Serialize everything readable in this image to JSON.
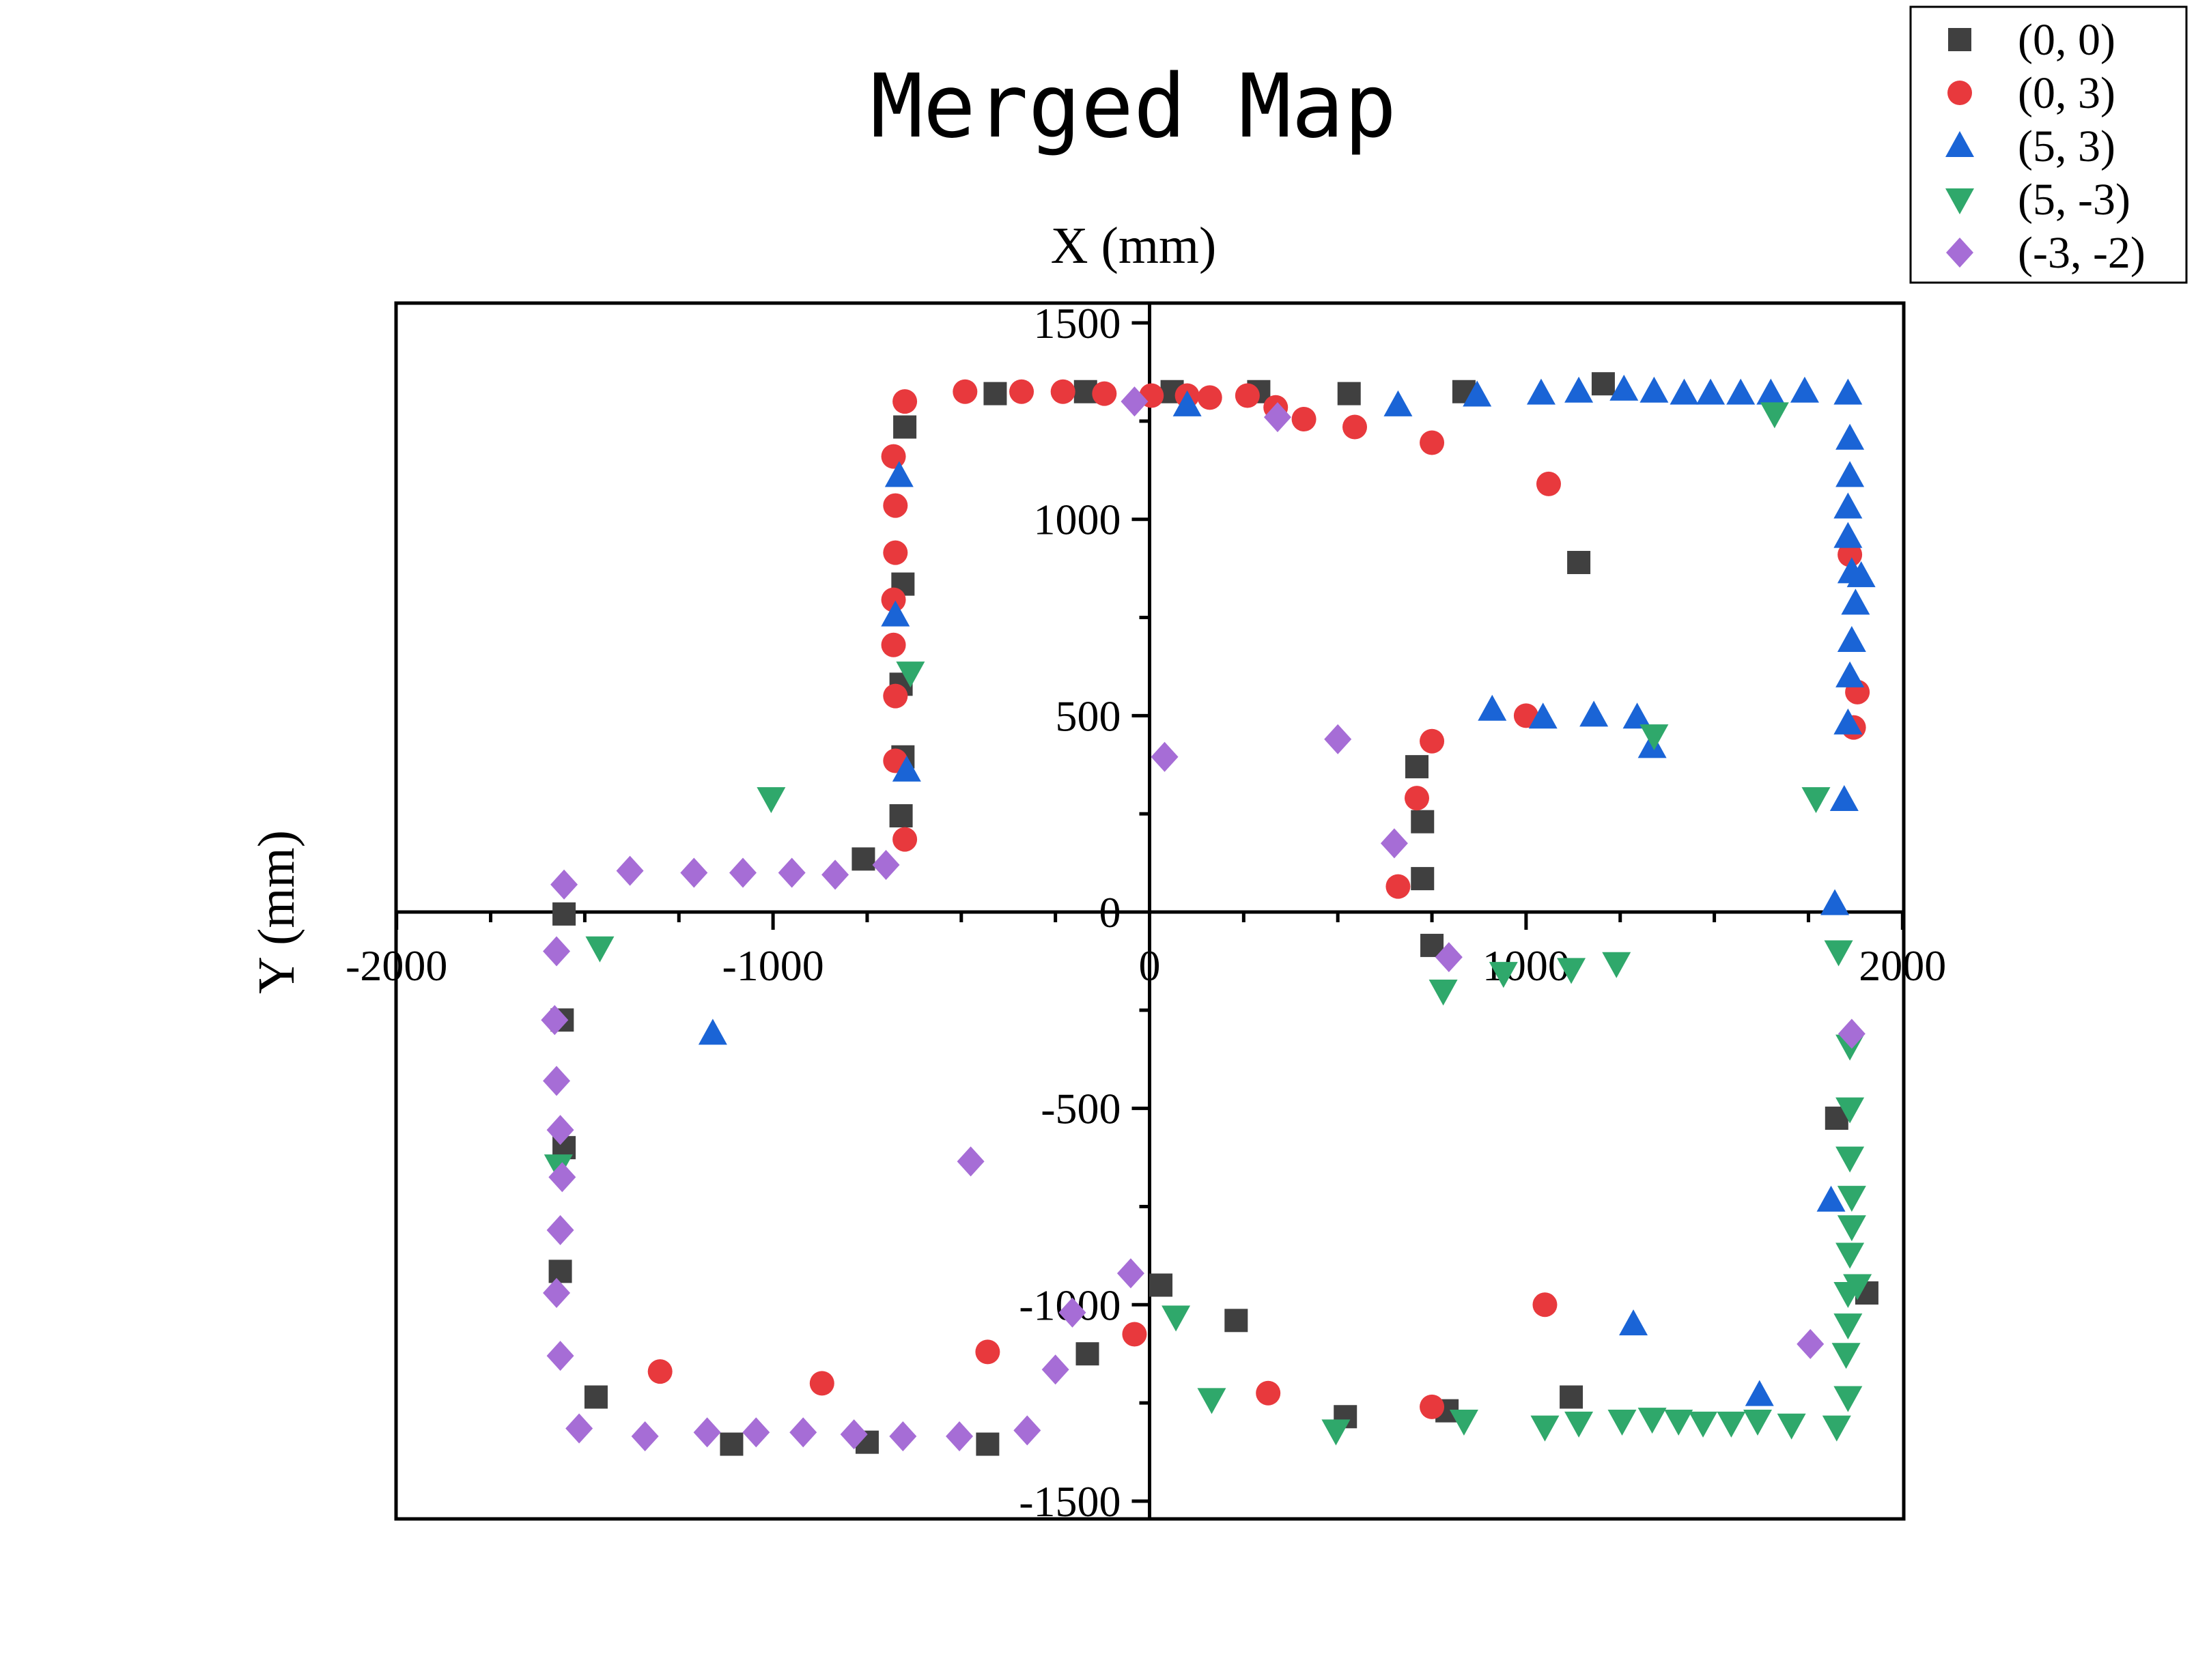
{
  "chart_data": {
    "type": "scatter",
    "title": "Merged Map",
    "xlabel": "X (mm)",
    "ylabel": "Y (mm)",
    "xlim": [
      -2000,
      2000
    ],
    "ylim": [
      -1550,
      1550
    ],
    "xticks": [
      -2000,
      -1000,
      0,
      1000,
      2000
    ],
    "yticks": [
      1500,
      1000,
      500,
      0,
      -500,
      -1000,
      -1500
    ],
    "x_tick_labels": [
      "-2000",
      "-1000",
      "0",
      "1000",
      "2000"
    ],
    "y_tick_labels": [
      "1500",
      "1000",
      "500",
      "0",
      "-500",
      "-1000",
      "-1500"
    ],
    "grid": false,
    "legend_position": "top-right",
    "series": [
      {
        "name": "(0, 0)",
        "marker": "square",
        "color": "#404040",
        "points": [
          [
            -1555,
            -5
          ],
          [
            -1560,
            -275
          ],
          [
            -1555,
            -600
          ],
          [
            -1565,
            -915
          ],
          [
            -1470,
            -1235
          ],
          [
            -1110,
            -1355
          ],
          [
            -750,
            -1350
          ],
          [
            -430,
            -1355
          ],
          [
            -165,
            -1125
          ],
          [
            30,
            -950
          ],
          [
            230,
            -1040
          ],
          [
            520,
            -1285
          ],
          [
            790,
            -1270
          ],
          [
            1120,
            -1235
          ],
          [
            1905,
            -970
          ],
          [
            1825,
            -525
          ],
          [
            -760,
            135
          ],
          [
            -660,
            245
          ],
          [
            -655,
            395
          ],
          [
            -660,
            580
          ],
          [
            -655,
            835
          ],
          [
            -650,
            1235
          ],
          [
            -410,
            1320
          ],
          [
            -170,
            1325
          ],
          [
            60,
            1325
          ],
          [
            290,
            1325
          ],
          [
            530,
            1320
          ],
          [
            835,
            1325
          ],
          [
            1205,
            1345
          ],
          [
            1140,
            890
          ],
          [
            710,
            370
          ],
          [
            725,
            230
          ],
          [
            725,
            85
          ],
          [
            750,
            -85
          ]
        ]
      },
      {
        "name": "(0, 3)",
        "marker": "circle",
        "color": "#e8393d",
        "points": [
          [
            -1300,
            -1170
          ],
          [
            -870,
            -1200
          ],
          [
            -430,
            -1120
          ],
          [
            -40,
            -1075
          ],
          [
            315,
            -1225
          ],
          [
            750,
            -1260
          ],
          [
            1050,
            -1000
          ],
          [
            1870,
            470
          ],
          [
            1880,
            560
          ],
          [
            1860,
            910
          ],
          [
            -650,
            1300
          ],
          [
            -680,
            1160
          ],
          [
            -675,
            1035
          ],
          [
            -675,
            915
          ],
          [
            -680,
            795
          ],
          [
            -680,
            680
          ],
          [
            -675,
            550
          ],
          [
            -675,
            385
          ],
          [
            -650,
            185
          ],
          [
            -490,
            1325
          ],
          [
            -340,
            1325
          ],
          [
            -230,
            1325
          ],
          [
            -120,
            1320
          ],
          [
            5,
            1315
          ],
          [
            100,
            1315
          ],
          [
            160,
            1310
          ],
          [
            260,
            1315
          ],
          [
            335,
            1285
          ],
          [
            410,
            1255
          ],
          [
            545,
            1235
          ],
          [
            750,
            1195
          ],
          [
            1060,
            1090
          ],
          [
            1000,
            500
          ],
          [
            750,
            435
          ],
          [
            710,
            290
          ],
          [
            660,
            65
          ]
        ]
      },
      {
        "name": "(5, 3)",
        "marker": "triangle-up",
        "color": "#1a64d6",
        "points": [
          [
            -1160,
            -310
          ],
          [
            1810,
            -735
          ],
          [
            1620,
            -1230
          ],
          [
            1285,
            -1050
          ],
          [
            -665,
            1110
          ],
          [
            -675,
            755
          ],
          [
            -645,
            360
          ],
          [
            100,
            1290
          ],
          [
            660,
            1290
          ],
          [
            870,
            1315
          ],
          [
            1040,
            1320
          ],
          [
            1140,
            1325
          ],
          [
            1260,
            1330
          ],
          [
            1340,
            1325
          ],
          [
            1420,
            1320
          ],
          [
            1490,
            1320
          ],
          [
            1570,
            1320
          ],
          [
            1650,
            1320
          ],
          [
            1740,
            1325
          ],
          [
            1855,
            1320
          ],
          [
            1860,
            1205
          ],
          [
            1860,
            1110
          ],
          [
            1855,
            1030
          ],
          [
            1855,
            955
          ],
          [
            1865,
            865
          ],
          [
            1890,
            855
          ],
          [
            1875,
            785
          ],
          [
            1865,
            690
          ],
          [
            1860,
            600
          ],
          [
            1855,
            480
          ],
          [
            1845,
            285
          ],
          [
            1820,
            20
          ],
          [
            910,
            515
          ],
          [
            1045,
            495
          ],
          [
            1180,
            500
          ],
          [
            1295,
            495
          ],
          [
            1335,
            420
          ]
        ]
      },
      {
        "name": "(5, -3)",
        "marker": "triangle-down",
        "color": "#2fa86b",
        "points": [
          [
            1660,
            1270
          ],
          [
            -1005,
            290
          ],
          [
            -635,
            610
          ],
          [
            -1460,
            -90
          ],
          [
            -1570,
            -645
          ],
          [
            70,
            -1030
          ],
          [
            165,
            -1240
          ],
          [
            495,
            -1320
          ],
          [
            780,
            -200
          ],
          [
            835,
            -1295
          ],
          [
            940,
            -155
          ],
          [
            1050,
            -1310
          ],
          [
            1120,
            -145
          ],
          [
            1140,
            -1300
          ],
          [
            1240,
            -130
          ],
          [
            1255,
            -1295
          ],
          [
            1335,
            -1290
          ],
          [
            1405,
            -1295
          ],
          [
            1470,
            -1300
          ],
          [
            1545,
            -1300
          ],
          [
            1615,
            -1295
          ],
          [
            1705,
            -1305
          ],
          [
            1825,
            -1310
          ],
          [
            1830,
            -100
          ],
          [
            1855,
            -1235
          ],
          [
            1850,
            -1125
          ],
          [
            1855,
            -1050
          ],
          [
            1855,
            -970
          ],
          [
            1880,
            -950
          ],
          [
            1860,
            -870
          ],
          [
            1865,
            -800
          ],
          [
            1865,
            -725
          ],
          [
            1860,
            -625
          ],
          [
            1860,
            -500
          ],
          [
            1860,
            -340
          ],
          [
            1770,
            290
          ],
          [
            1340,
            450
          ]
        ]
      },
      {
        "name": "(-3, -2)",
        "marker": "diamond",
        "color": "#a66dd6",
        "points": [
          [
            -1555,
            70
          ],
          [
            -1380,
            105
          ],
          [
            -1210,
            100
          ],
          [
            -1080,
            100
          ],
          [
            -950,
            100
          ],
          [
            -835,
            95
          ],
          [
            -700,
            120
          ],
          [
            -1575,
            -100
          ],
          [
            -1580,
            -275
          ],
          [
            -1575,
            -430
          ],
          [
            -1565,
            -555
          ],
          [
            -1560,
            -675
          ],
          [
            -1565,
            -810
          ],
          [
            -1575,
            -970
          ],
          [
            -1565,
            -1130
          ],
          [
            -1515,
            -1315
          ],
          [
            -1340,
            -1335
          ],
          [
            -1175,
            -1325
          ],
          [
            -1045,
            -1325
          ],
          [
            -920,
            -1325
          ],
          [
            -785,
            -1330
          ],
          [
            -655,
            -1335
          ],
          [
            -505,
            -1335
          ],
          [
            -325,
            -1320
          ],
          [
            -250,
            -1165
          ],
          [
            -205,
            -1020
          ],
          [
            -50,
            -920
          ],
          [
            -475,
            -635
          ],
          [
            -40,
            1300
          ],
          [
            340,
            1260
          ],
          [
            500,
            440
          ],
          [
            40,
            395
          ],
          [
            650,
            175
          ],
          [
            795,
            -115
          ],
          [
            1755,
            -1100
          ],
          [
            1865,
            -310
          ]
        ]
      }
    ]
  }
}
